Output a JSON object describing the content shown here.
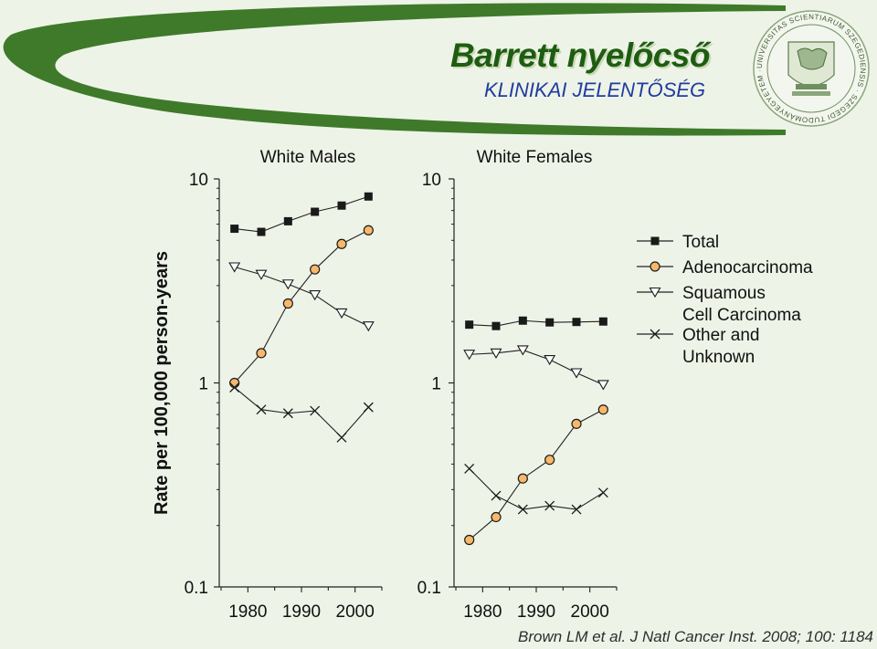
{
  "header": {
    "title": "Barrett nyelőcső",
    "subtitle": "KLINIKAI JELENTŐSÉG"
  },
  "seal": {
    "text": "UNIVERSITAS SCIENTIARUM SZEGEDIENSIS · SZEGEDI TUDOMÁNYEGYETEM ·"
  },
  "colors": {
    "background": "#eef3e7",
    "swoosh": "#3e7a2a",
    "title": "#1e5c12",
    "subtitle": "#1f3d9e",
    "adeno_fill": "#f7b86a"
  },
  "chart_data": [
    {
      "type": "line",
      "title": "White Males",
      "ylabel": "Rate per 100,000 person-years",
      "yscale": "log",
      "ylim": [
        0.1,
        10
      ],
      "yticks": [
        0.1,
        1,
        10
      ],
      "ytick_labels": [
        "0.1",
        "1",
        "10"
      ],
      "xticks": [
        1980,
        1990,
        2000
      ],
      "xtick_labels": [
        "1980",
        "1990",
        "2000"
      ],
      "x": [
        1977.5,
        1982.5,
        1987.5,
        1992.5,
        1997.5,
        2002.5
      ],
      "series": [
        {
          "name": "Total",
          "marker": "square",
          "values": [
            5.7,
            5.5,
            6.2,
            6.9,
            7.4,
            8.2
          ]
        },
        {
          "name": "Adenocarcinoma",
          "marker": "circle",
          "values": [
            1.0,
            1.4,
            2.45,
            3.6,
            4.8,
            5.6
          ]
        },
        {
          "name": "Squamous Cell Carcinoma",
          "marker": "triangle-down",
          "values": [
            3.7,
            3.4,
            3.05,
            2.7,
            2.2,
            1.9
          ]
        },
        {
          "name": "Other and Unknown",
          "marker": "x",
          "values": [
            0.95,
            0.74,
            0.71,
            0.73,
            0.54,
            0.76
          ]
        }
      ]
    },
    {
      "type": "line",
      "title": "White Females",
      "yscale": "log",
      "ylim": [
        0.1,
        10
      ],
      "yticks": [
        0.1,
        1,
        10
      ],
      "ytick_labels": [
        "0.1",
        "1",
        "10"
      ],
      "xticks": [
        1980,
        1990,
        2000
      ],
      "xtick_labels": [
        "1980",
        "1990",
        "2000"
      ],
      "x": [
        1977.5,
        1982.5,
        1987.5,
        1992.5,
        1997.5,
        2002.5
      ],
      "series": [
        {
          "name": "Total",
          "marker": "square",
          "values": [
            1.93,
            1.9,
            2.02,
            1.98,
            1.99,
            2.0
          ]
        },
        {
          "name": "Adenocarcinoma",
          "marker": "circle",
          "values": [
            0.17,
            0.22,
            0.34,
            0.42,
            0.63,
            0.74
          ]
        },
        {
          "name": "Squamous Cell Carcinoma",
          "marker": "triangle-down",
          "values": [
            1.38,
            1.4,
            1.45,
            1.3,
            1.12,
            0.98
          ]
        },
        {
          "name": "Other and Unknown",
          "marker": "x",
          "values": [
            0.38,
            0.28,
            0.24,
            0.25,
            0.24,
            0.29
          ]
        }
      ]
    }
  ],
  "legend": {
    "placement": "right",
    "items": [
      {
        "marker": "square",
        "lines": [
          "Total"
        ]
      },
      {
        "marker": "circle",
        "lines": [
          "Adenocarcinoma"
        ]
      },
      {
        "marker": "triangle-down",
        "lines": [
          "Squamous",
          "Cell Carcinoma"
        ]
      },
      {
        "marker": "x",
        "lines": [
          "Other and",
          "Unknown"
        ]
      }
    ]
  },
  "citation": "Brown LM et al. J Natl Cancer Inst. 2008; 100: 1184"
}
